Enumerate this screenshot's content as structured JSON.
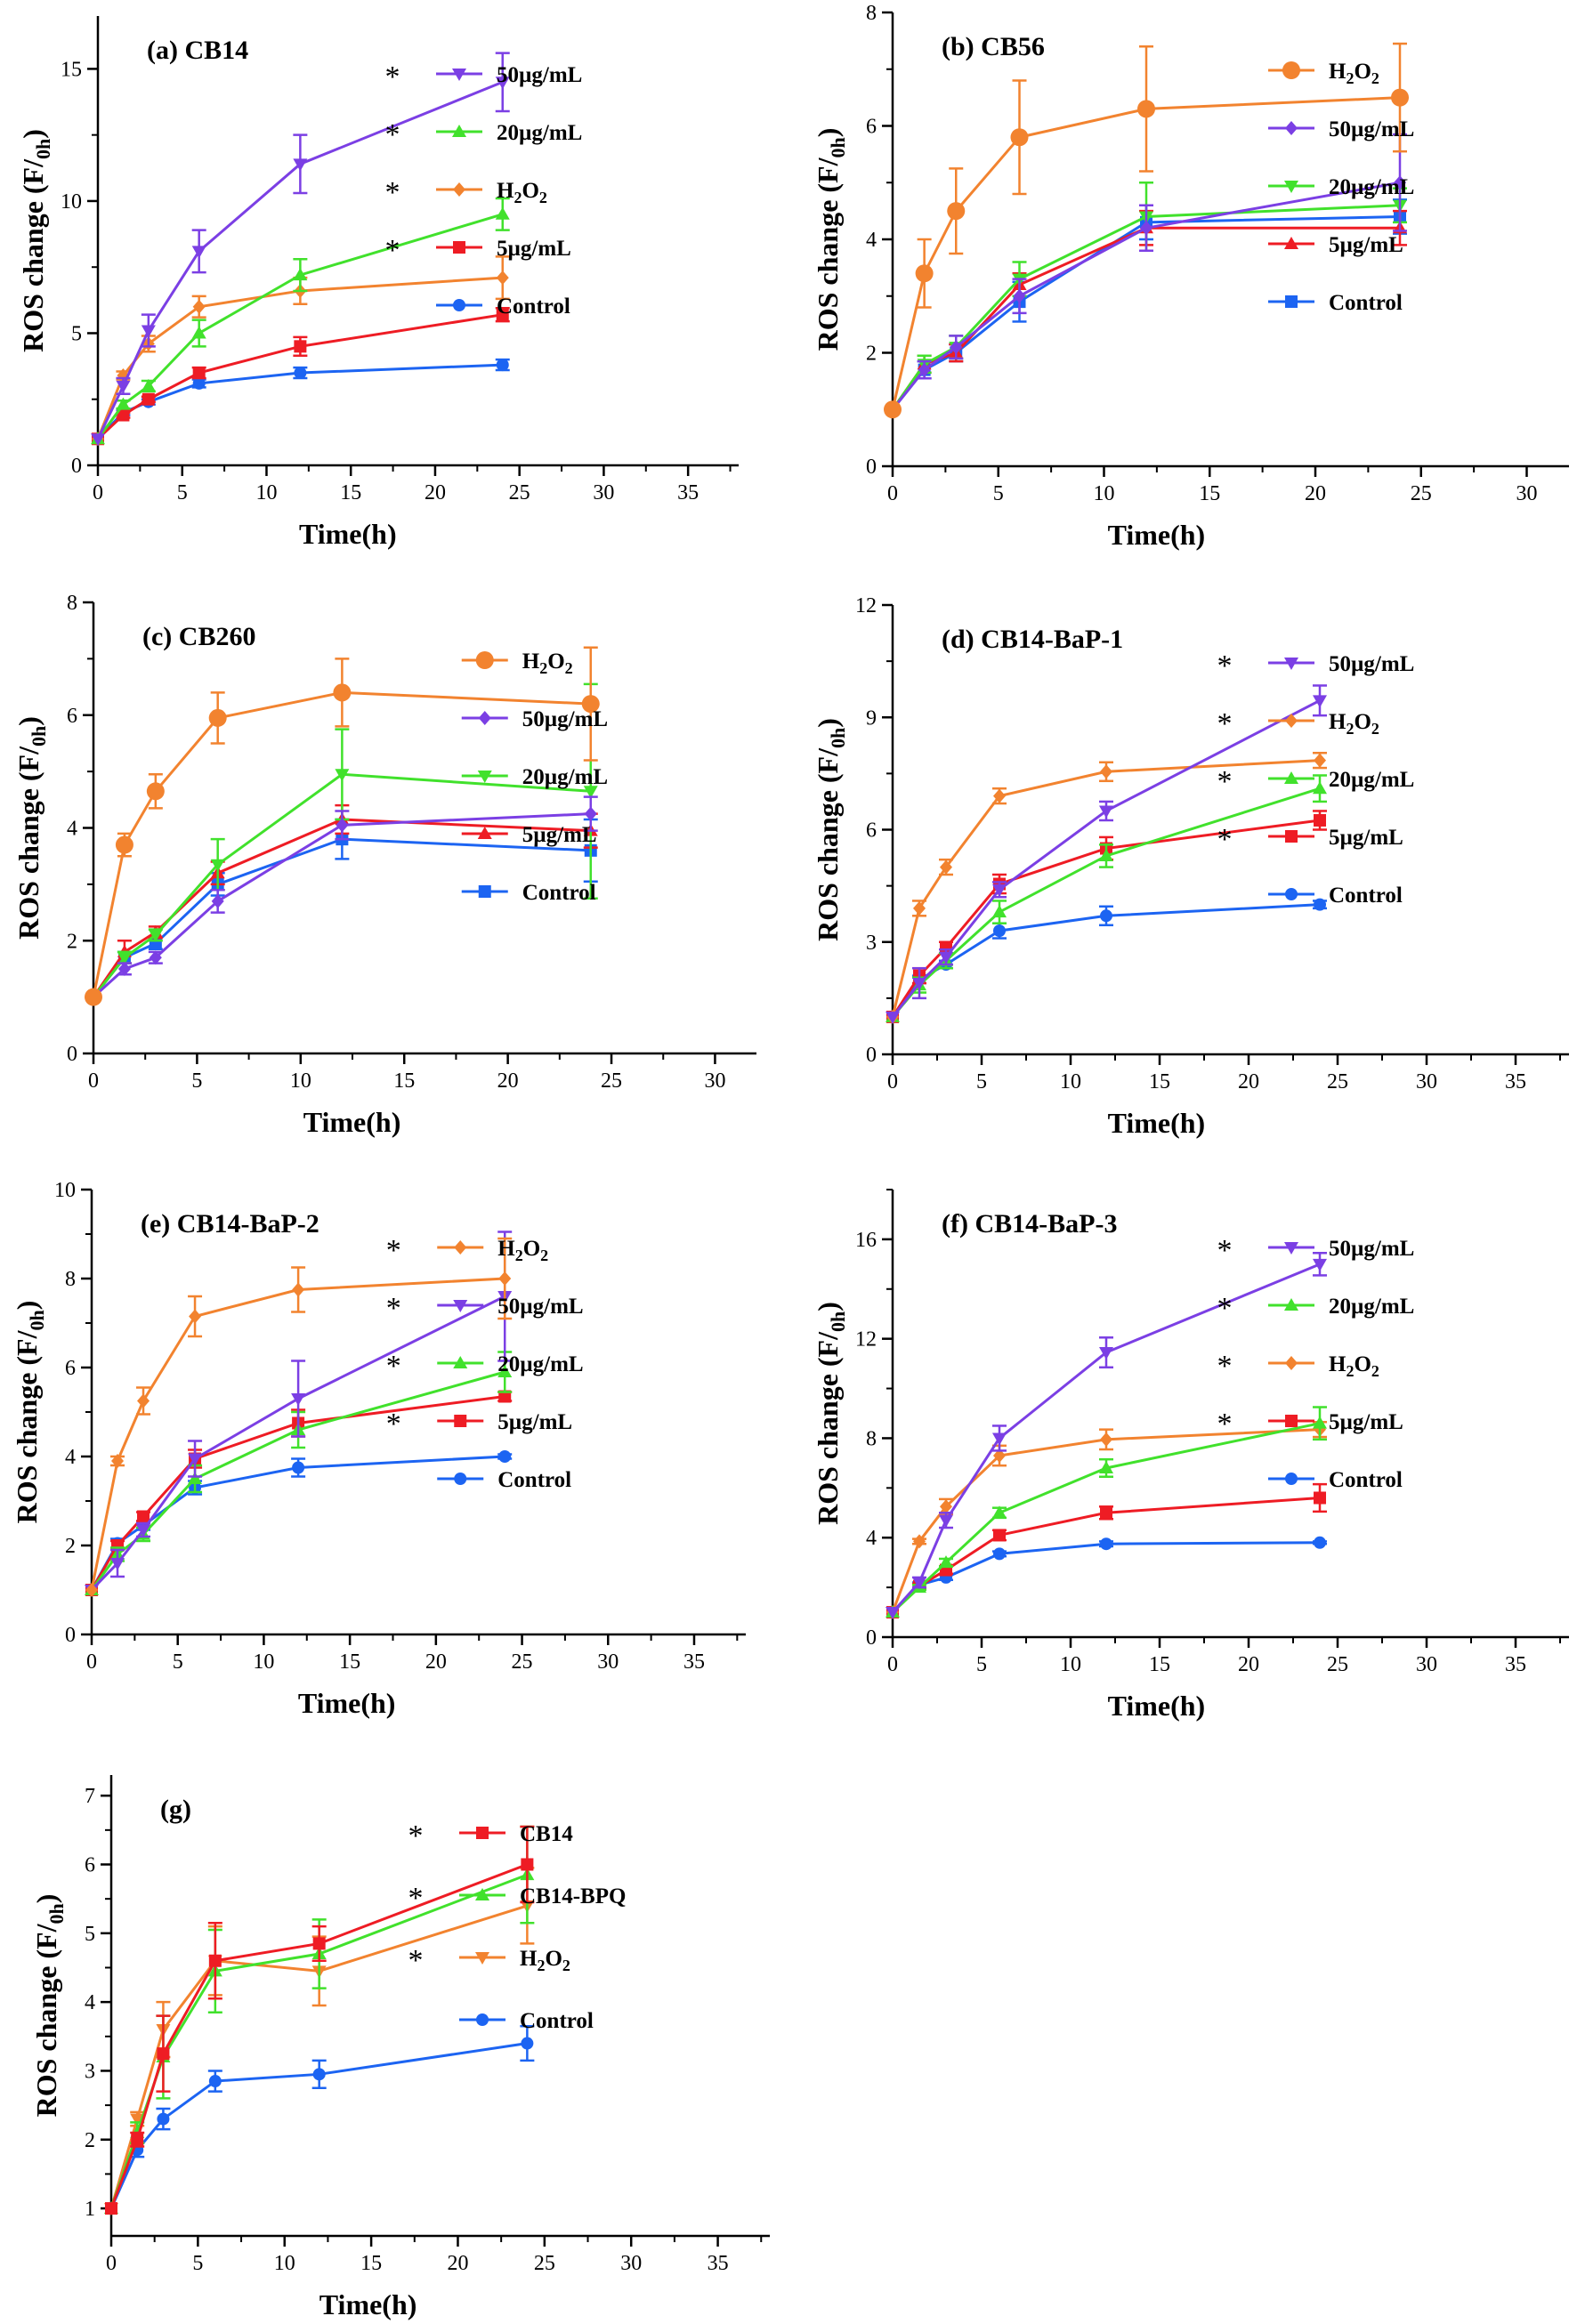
{
  "figure": {
    "background": "#ffffff",
    "colors": {
      "50µg/mL": "#7b3fe4",
      "20µg/mL": "#41e12c",
      "H2O2": "#f2832f",
      "5µg/mL": "#ee1c24",
      "Control": "#1c64f2",
      "CB14": "#ee1c24",
      "CB14-BPQ": "#41e12c"
    }
  },
  "chart_data": [
    {
      "type": "line",
      "id": "a",
      "title": "(a) CB14",
      "xlabel": "Time(h)",
      "ylabel": "ROS change (F/F0h)",
      "xlim": [
        0,
        38
      ],
      "ylim": [
        0,
        17
      ],
      "xticks": [
        0,
        5,
        10,
        15,
        20,
        25,
        30,
        35
      ],
      "yticks": [
        0,
        5,
        10,
        15
      ],
      "grid": false,
      "x": [
        0,
        1.5,
        3,
        6,
        12,
        24
      ],
      "legend": [
        "50µg/mL",
        "20µg/mL",
        "H2O2",
        "5µg/mL",
        "Control"
      ],
      "stars": [
        1,
        1,
        1,
        1,
        0
      ],
      "series": [
        {
          "name": "50µg/mL",
          "values": [
            1,
            3.0,
            5.1,
            8.1,
            11.4,
            14.5
          ],
          "errors": [
            0,
            0.3,
            0.6,
            0.8,
            1.1,
            1.1
          ],
          "marker": "triangle-down"
        },
        {
          "name": "20µg/mL",
          "values": [
            1,
            2.3,
            3.0,
            5.0,
            7.2,
            9.5
          ],
          "errors": [
            0,
            0.15,
            0.2,
            0.5,
            0.6,
            0.6
          ],
          "marker": "triangle-up"
        },
        {
          "name": "H2O2",
          "values": [
            1,
            3.4,
            4.6,
            6.0,
            6.6,
            7.1
          ],
          "errors": [
            0,
            0.15,
            0.3,
            0.4,
            0.5,
            0.8
          ],
          "marker": "diamond"
        },
        {
          "name": "5µg/mL",
          "values": [
            1,
            1.9,
            2.5,
            3.5,
            4.5,
            5.7
          ],
          "errors": [
            0,
            0.1,
            0.1,
            0.2,
            0.35,
            0.25
          ],
          "marker": "square"
        },
        {
          "name": "Control",
          "values": [
            1,
            2.0,
            2.4,
            3.1,
            3.5,
            3.8
          ],
          "errors": [
            0,
            0.1,
            0.1,
            0.15,
            0.2,
            0.2
          ],
          "marker": "circle"
        }
      ]
    },
    {
      "type": "line",
      "id": "b",
      "title": "(b) CB56",
      "xlabel": "Time(h)",
      "ylabel": "ROS change (F/F0h)",
      "xlim": [
        0,
        32
      ],
      "ylim": [
        0,
        8
      ],
      "xticks": [
        0,
        5,
        10,
        15,
        20,
        25,
        30
      ],
      "yticks": [
        0,
        2,
        4,
        6,
        8
      ],
      "grid": false,
      "x": [
        0,
        1.5,
        3,
        6,
        12,
        24
      ],
      "legend": [
        "H2O2",
        "50µg/mL",
        "20µg/mL",
        "5µg/mL",
        "Control"
      ],
      "stars": [
        0,
        0,
        0,
        0,
        0
      ],
      "series": [
        {
          "name": "H2O2",
          "values": [
            1,
            3.4,
            4.5,
            5.8,
            6.3,
            6.5
          ],
          "errors": [
            0,
            0.6,
            0.75,
            1.0,
            1.1,
            0.95
          ],
          "marker": "circle-large"
        },
        {
          "name": "50µg/mL",
          "values": [
            1,
            1.7,
            2.1,
            3.0,
            4.2,
            5.0
          ],
          "errors": [
            0,
            0.15,
            0.2,
            0.3,
            0.4,
            0.85
          ],
          "marker": "diamond"
        },
        {
          "name": "20µg/mL",
          "values": [
            1,
            1.8,
            2.1,
            3.3,
            4.4,
            4.6
          ],
          "errors": [
            0,
            0.15,
            0.2,
            0.3,
            0.6,
            0.3
          ],
          "marker": "triangle-down"
        },
        {
          "name": "5µg/mL",
          "values": [
            1,
            1.8,
            2.0,
            3.2,
            4.2,
            4.2
          ],
          "errors": [
            0,
            0.15,
            0.15,
            0.2,
            0.3,
            0.3
          ],
          "marker": "triangle-up"
        },
        {
          "name": "Control",
          "values": [
            1,
            1.7,
            2.0,
            2.9,
            4.3,
            4.4
          ],
          "errors": [
            0,
            0.15,
            0.15,
            0.35,
            0.3,
            0.3
          ],
          "marker": "square"
        }
      ]
    },
    {
      "type": "line",
      "id": "c",
      "title": "(c) CB260",
      "xlabel": "Time(h)",
      "ylabel": "ROS change (F/F0h)",
      "xlim": [
        0,
        32
      ],
      "ylim": [
        0,
        8
      ],
      "xticks": [
        0,
        5,
        10,
        15,
        20,
        25,
        30
      ],
      "yticks": [
        0,
        2,
        4,
        6,
        8
      ],
      "grid": false,
      "x": [
        0,
        1.5,
        3,
        6,
        12,
        24
      ],
      "legend": [
        "H2O2",
        "50µg/mL",
        "20µg/mL",
        "5µg/mL",
        "Control"
      ],
      "stars": [
        0,
        0,
        0,
        0,
        0
      ],
      "series": [
        {
          "name": "H2O2",
          "values": [
            1,
            3.7,
            4.65,
            5.95,
            6.4,
            6.2
          ],
          "errors": [
            0,
            0.2,
            0.3,
            0.45,
            0.6,
            1.0
          ],
          "marker": "circle-large"
        },
        {
          "name": "50µg/mL",
          "values": [
            1,
            1.5,
            1.7,
            2.7,
            4.05,
            4.25
          ],
          "errors": [
            0,
            0.1,
            0.1,
            0.2,
            0.25,
            0.3
          ],
          "marker": "diamond"
        },
        {
          "name": "20µg/mL",
          "values": [
            1,
            1.7,
            2.1,
            3.35,
            4.95,
            4.65
          ],
          "errors": [
            0,
            0.1,
            0.1,
            0.45,
            0.8,
            1.9
          ],
          "marker": "triangle-down"
        },
        {
          "name": "5µg/mL",
          "values": [
            1,
            1.8,
            2.15,
            3.2,
            4.15,
            3.95
          ],
          "errors": [
            0,
            0.2,
            0.1,
            0.2,
            0.25,
            0.3
          ],
          "marker": "triangle-up"
        },
        {
          "name": "Control",
          "values": [
            1,
            1.7,
            1.95,
            3.0,
            3.8,
            3.6
          ],
          "errors": [
            0,
            0.1,
            0.1,
            0.2,
            0.35,
            0.55
          ],
          "marker": "square"
        }
      ]
    },
    {
      "type": "line",
      "id": "d",
      "title": "(d) CB14-BaP-1",
      "xlabel": "Time(h)",
      "ylabel": "ROS change (F/F0h)",
      "xlim": [
        0,
        38
      ],
      "ylim": [
        0,
        12
      ],
      "xticks": [
        0,
        5,
        10,
        15,
        20,
        25,
        30,
        35
      ],
      "yticks": [
        0,
        3,
        6,
        9,
        12
      ],
      "grid": false,
      "x": [
        0,
        1.5,
        3,
        6,
        12,
        24
      ],
      "legend": [
        "50µg/mL",
        "H2O2",
        "20µg/mL",
        "5µg/mL",
        "Control"
      ],
      "stars": [
        1,
        1,
        1,
        1,
        0
      ],
      "series": [
        {
          "name": "50µg/mL",
          "values": [
            1,
            1.9,
            2.6,
            4.4,
            6.5,
            9.45
          ],
          "errors": [
            0,
            0.4,
            0.2,
            0.2,
            0.25,
            0.4
          ],
          "marker": "triangle-down"
        },
        {
          "name": "H2O2",
          "values": [
            1,
            3.9,
            5.0,
            6.9,
            7.55,
            7.85
          ],
          "errors": [
            0,
            0.2,
            0.2,
            0.2,
            0.25,
            0.2
          ],
          "marker": "diamond"
        },
        {
          "name": "20µg/mL",
          "values": [
            1,
            1.85,
            2.5,
            3.8,
            5.3,
            7.1
          ],
          "errors": [
            0,
            0.2,
            0.2,
            0.3,
            0.3,
            0.35
          ],
          "marker": "triangle-up"
        },
        {
          "name": "5µg/mL",
          "values": [
            1,
            2.1,
            2.85,
            4.55,
            5.5,
            6.25
          ],
          "errors": [
            0,
            0.2,
            0.15,
            0.25,
            0.3,
            0.25
          ],
          "marker": "square"
        },
        {
          "name": "Control",
          "values": [
            1,
            2.0,
            2.4,
            3.3,
            3.7,
            4.0
          ],
          "errors": [
            0,
            0.1,
            0.1,
            0.2,
            0.25,
            0.1
          ],
          "marker": "circle"
        }
      ]
    },
    {
      "type": "line",
      "id": "e",
      "title": "(e) CB14-BaP-2",
      "xlabel": "Time(h)",
      "ylabel": "ROS change (F/F0h)",
      "xlim": [
        0,
        38
      ],
      "ylim": [
        0,
        10
      ],
      "xticks": [
        0,
        5,
        10,
        15,
        20,
        25,
        30,
        35
      ],
      "yticks": [
        0,
        2,
        4,
        6,
        8,
        10
      ],
      "grid": false,
      "x": [
        0,
        1.5,
        3,
        6,
        12,
        24
      ],
      "legend": [
        "H2O2",
        "50µg/mL",
        "20µg/mL",
        "5µg/mL",
        "Control"
      ],
      "stars": [
        1,
        1,
        1,
        1,
        0
      ],
      "series": [
        {
          "name": "H2O2",
          "values": [
            1,
            3.9,
            5.25,
            7.15,
            7.75,
            8.0
          ],
          "errors": [
            0,
            0.1,
            0.3,
            0.45,
            0.5,
            0.9
          ],
          "marker": "diamond"
        },
        {
          "name": "50µg/mL",
          "values": [
            1,
            1.6,
            2.35,
            3.95,
            5.3,
            7.6
          ],
          "errors": [
            0,
            0.3,
            0.15,
            0.4,
            0.85,
            1.45
          ],
          "marker": "triangle-down"
        },
        {
          "name": "20µg/mL",
          "values": [
            1,
            1.8,
            2.25,
            3.5,
            4.6,
            5.9
          ],
          "errors": [
            0,
            0.15,
            0.15,
            0.3,
            0.4,
            0.45
          ],
          "marker": "triangle-up"
        },
        {
          "name": "5µg/mL",
          "values": [
            1,
            2.0,
            2.65,
            3.95,
            4.75,
            5.35
          ],
          "errors": [
            0,
            0.1,
            0.1,
            0.2,
            0.3,
            0.1
          ],
          "marker": "square"
        },
        {
          "name": "Control",
          "values": [
            1,
            2.05,
            2.45,
            3.3,
            3.75,
            4.0
          ],
          "errors": [
            0,
            0.1,
            0.1,
            0.15,
            0.2,
            0.05
          ],
          "marker": "circle"
        }
      ]
    },
    {
      "type": "line",
      "id": "f",
      "title": "(f) CB14-BaP-3",
      "xlabel": "Time(h)",
      "ylabel": "ROS change (F/F0h)",
      "xlim": [
        0,
        38
      ],
      "ylim": [
        0,
        18
      ],
      "xticks": [
        0,
        5,
        10,
        15,
        20,
        25,
        30,
        35
      ],
      "yticks": [
        0,
        4,
        8,
        12,
        16
      ],
      "grid": false,
      "x": [
        0,
        1.5,
        3,
        6,
        12,
        24
      ],
      "legend": [
        "50µg/mL",
        "20µg/mL",
        "H2O2",
        "5µg/mL",
        "Control"
      ],
      "stars": [
        1,
        1,
        1,
        1,
        0
      ],
      "series": [
        {
          "name": "50µg/mL",
          "values": [
            1,
            2.2,
            4.7,
            8.0,
            11.45,
            15.0
          ],
          "errors": [
            0,
            0.2,
            0.3,
            0.5,
            0.6,
            0.45
          ],
          "marker": "triangle-down"
        },
        {
          "name": "20µg/mL",
          "values": [
            1,
            2.0,
            3.0,
            5.0,
            6.8,
            8.6
          ],
          "errors": [
            0,
            0.1,
            0.15,
            0.2,
            0.35,
            0.65
          ],
          "marker": "triangle-up"
        },
        {
          "name": "H2O2",
          "values": [
            1,
            3.85,
            5.25,
            7.3,
            7.95,
            8.35
          ],
          "errors": [
            0,
            0.1,
            0.3,
            0.4,
            0.4,
            0.3
          ],
          "marker": "diamond"
        },
        {
          "name": "5µg/mL",
          "values": [
            1,
            2.05,
            2.7,
            4.1,
            5.0,
            5.6
          ],
          "errors": [
            0,
            0.1,
            0.15,
            0.2,
            0.25,
            0.55
          ],
          "marker": "square"
        },
        {
          "name": "Control",
          "values": [
            1,
            2.1,
            2.4,
            3.35,
            3.75,
            3.8
          ],
          "errors": [
            0,
            0.1,
            0.1,
            0.1,
            0.1,
            0.05
          ],
          "marker": "circle"
        }
      ]
    },
    {
      "type": "line",
      "id": "g",
      "title": "(g)",
      "xlabel": "Time(h)",
      "ylabel": "ROS change (F/F0h)",
      "xlim": [
        0,
        38
      ],
      "ylim": [
        0.6,
        7.3
      ],
      "xticks": [
        0,
        5,
        10,
        15,
        20,
        25,
        30,
        35
      ],
      "yticks": [
        1,
        2,
        3,
        4,
        5,
        6,
        7
      ],
      "grid": false,
      "x": [
        0,
        1.5,
        3,
        6,
        12,
        24
      ],
      "legend": [
        "CB14",
        "CB14-BPQ",
        "H2O2",
        "Control"
      ],
      "stars": [
        1,
        1,
        1,
        0
      ],
      "series": [
        {
          "name": "CB14",
          "values": [
            1,
            2.0,
            3.25,
            4.6,
            4.85,
            6.0
          ],
          "errors": [
            0,
            0.1,
            0.55,
            0.55,
            0.25,
            0.55
          ],
          "marker": "square"
        },
        {
          "name": "CB14-BPQ",
          "values": [
            1,
            2.1,
            3.2,
            4.45,
            4.7,
            5.85
          ],
          "errors": [
            0,
            0.15,
            0.6,
            0.6,
            0.5,
            0.7
          ],
          "marker": "triangle-up"
        },
        {
          "name": "H2O2",
          "values": [
            1,
            2.3,
            3.6,
            4.6,
            4.45,
            5.4
          ],
          "errors": [
            0,
            0.1,
            0.4,
            0.5,
            0.5,
            0.55
          ],
          "marker": "triangle-down"
        },
        {
          "name": "Control",
          "values": [
            1,
            1.85,
            2.3,
            2.85,
            2.95,
            3.4
          ],
          "errors": [
            0,
            0.1,
            0.15,
            0.15,
            0.2,
            0.25
          ],
          "marker": "circle"
        }
      ]
    }
  ]
}
